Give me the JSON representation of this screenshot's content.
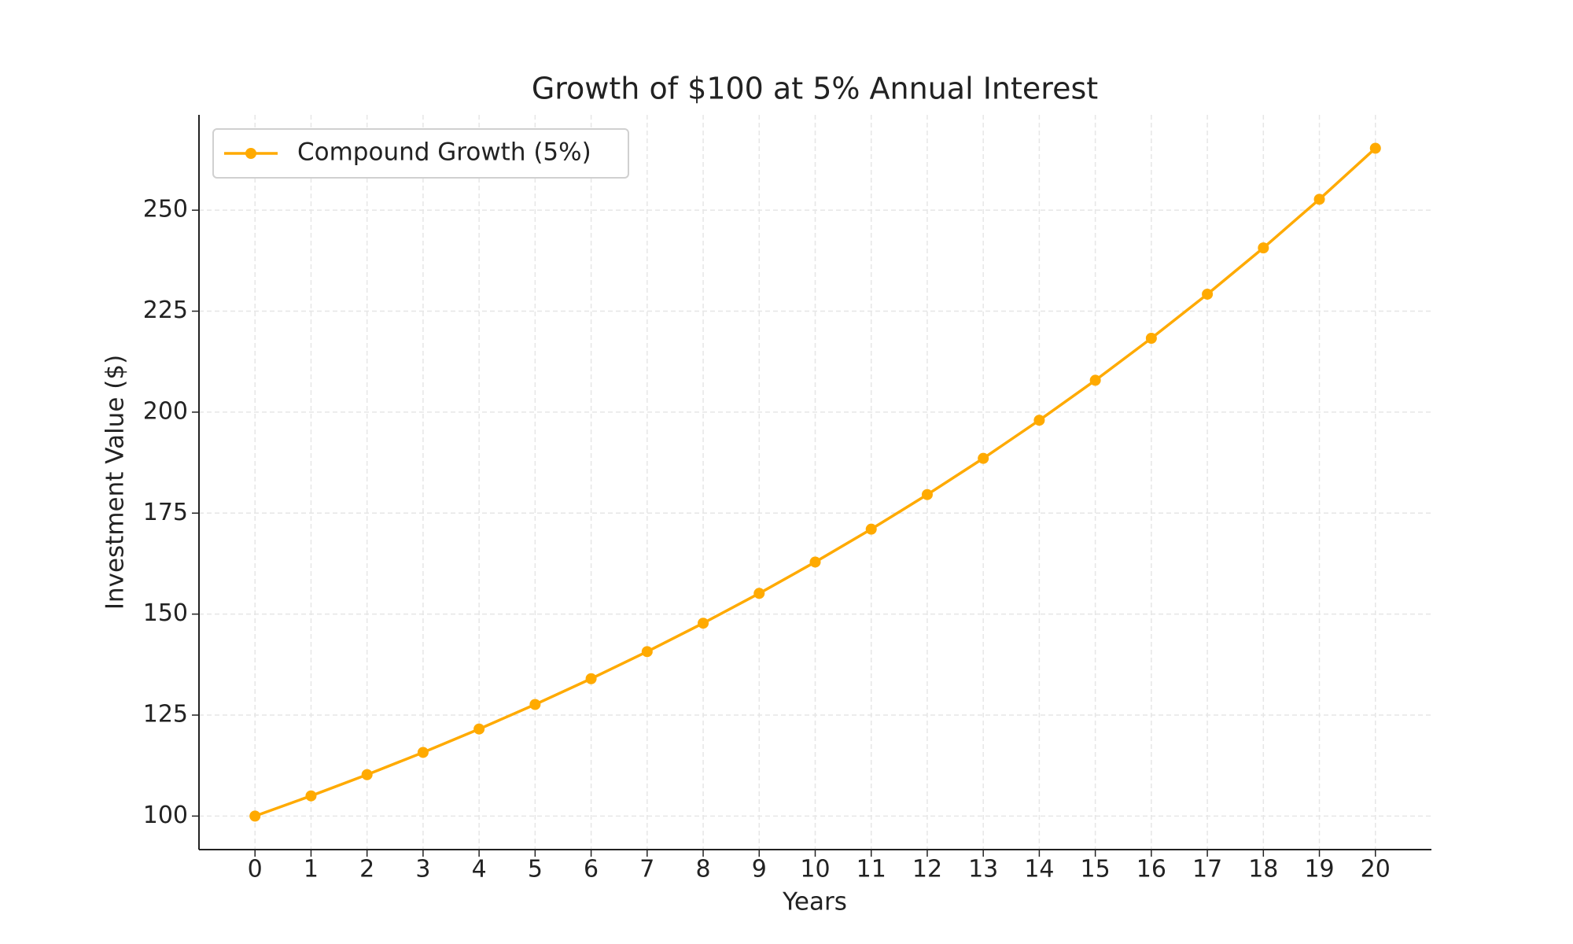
{
  "chart_data": {
    "type": "line",
    "title": "Growth of $100 at 5% Annual Interest",
    "x_label": "Years",
    "y_label": "Investment Value ($)",
    "x": [
      0,
      1,
      2,
      3,
      4,
      5,
      6,
      7,
      8,
      9,
      10,
      11,
      12,
      13,
      14,
      15,
      16,
      17,
      18,
      19,
      20
    ],
    "series": [
      {
        "name": "Compound Growth (5%)",
        "color": "#ffaa00",
        "values": [
          100,
          105,
          110.25,
          115.76,
          121.55,
          127.63,
          134.01,
          140.71,
          147.75,
          155.13,
          162.89,
          171.03,
          179.59,
          188.56,
          197.99,
          207.89,
          218.29,
          229.2,
          240.66,
          252.7,
          265.33
        ]
      }
    ],
    "xlim": [
      -1,
      21
    ],
    "xticks": [
      0,
      1,
      2,
      3,
      4,
      5,
      6,
      7,
      8,
      9,
      10,
      11,
      12,
      13,
      14,
      15,
      16,
      17,
      18,
      19,
      20
    ],
    "ylim": [
      91.7,
      273.6
    ],
    "yticks": [
      100,
      125,
      150,
      175,
      200,
      225,
      250
    ],
    "grid": true,
    "legend": "upper left",
    "marker": "o"
  }
}
